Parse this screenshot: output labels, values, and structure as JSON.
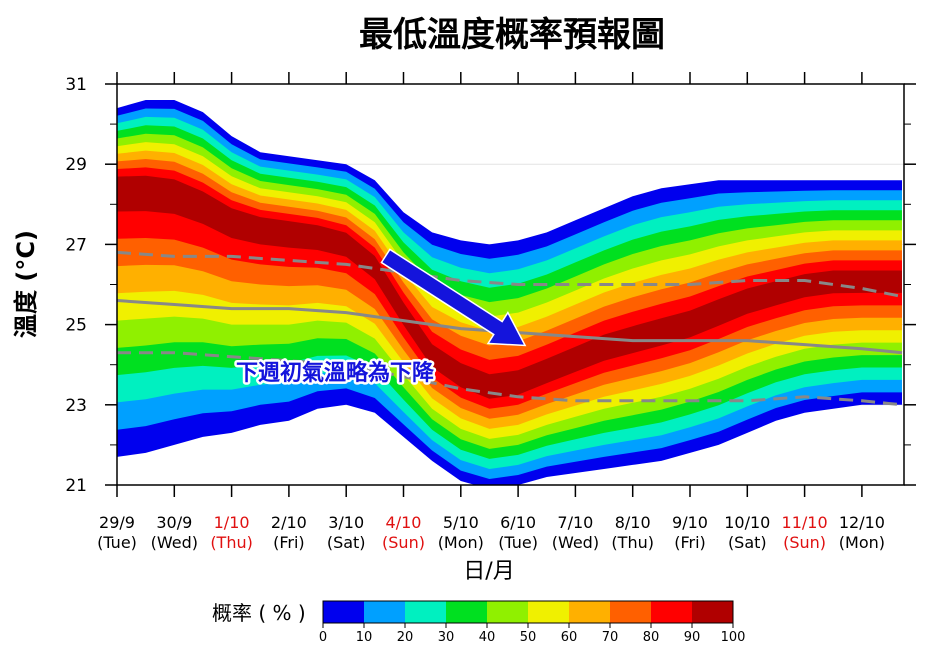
{
  "chart_data": {
    "type": "area",
    "title": "最低溫度概率預報圖",
    "ylabel": "溫度 (°C)",
    "xlabel": "日/月",
    "ylim": [
      21,
      31
    ],
    "yticks": [
      21,
      23,
      25,
      27,
      29,
      31
    ],
    "grid": true,
    "categories": [
      {
        "date": "29/9",
        "day": "(Tue)",
        "holiday": false
      },
      {
        "date": "30/9",
        "day": "(Wed)",
        "holiday": false
      },
      {
        "date": "1/10",
        "day": "(Thu)",
        "holiday": true
      },
      {
        "date": "2/10",
        "day": "(Fri)",
        "holiday": false
      },
      {
        "date": "3/10",
        "day": "(Sat)",
        "holiday": false
      },
      {
        "date": "4/10",
        "day": "(Sun)",
        "holiday": true
      },
      {
        "date": "5/10",
        "day": "(Mon)",
        "holiday": false
      },
      {
        "date": "6/10",
        "day": "(Tue)",
        "holiday": false
      },
      {
        "date": "7/10",
        "day": "(Wed)",
        "holiday": false
      },
      {
        "date": "8/10",
        "day": "(Thu)",
        "holiday": false
      },
      {
        "date": "9/10",
        "day": "(Fri)",
        "holiday": false
      },
      {
        "date": "10/10",
        "day": "(Sat)",
        "holiday": false
      },
      {
        "date": "11/10",
        "day": "(Sun)",
        "holiday": true
      },
      {
        "date": "12/10",
        "day": "(Mon)",
        "holiday": false
      }
    ],
    "probability_bands": {
      "x": [
        0,
        0.5,
        1,
        1.5,
        2,
        2.5,
        3,
        3.5,
        4,
        4.5,
        5,
        5.5,
        6,
        6.5,
        7,
        7.5,
        8,
        8.5,
        9,
        9.5,
        10,
        10.5,
        11,
        11.5,
        12,
        12.5,
        13,
        13.7
      ],
      "center": [
        28.5,
        28.5,
        28.4,
        28.1,
        27.7,
        27.5,
        27.4,
        27.3,
        27.1,
        26.5,
        25.3,
        24.2,
        23.7,
        23.4,
        23.5,
        23.8,
        24.1,
        24.4,
        24.6,
        24.8,
        25.0,
        25.3,
        25.6,
        25.8,
        26.0,
        26.1,
        26.1,
        26.1
      ],
      "lower": [
        21.7,
        21.8,
        22.0,
        22.2,
        22.3,
        22.5,
        22.6,
        22.9,
        23.0,
        22.8,
        22.2,
        21.6,
        21.1,
        20.9,
        21.0,
        21.2,
        21.3,
        21.4,
        21.5,
        21.6,
        21.8,
        22.0,
        22.3,
        22.6,
        22.8,
        22.9,
        23.0,
        23.0
      ],
      "upper": [
        30.4,
        30.6,
        30.6,
        30.3,
        29.7,
        29.3,
        29.2,
        29.1,
        29.0,
        28.6,
        27.8,
        27.3,
        27.1,
        27.0,
        27.1,
        27.3,
        27.6,
        27.9,
        28.2,
        28.4,
        28.5,
        28.6,
        28.6,
        28.6,
        28.6,
        28.6,
        28.6,
        28.6
      ],
      "levels": [
        {
          "min": 0,
          "max": 10,
          "color": "#0000ee"
        },
        {
          "min": 10,
          "max": 20,
          "color": "#00a0ff"
        },
        {
          "min": 20,
          "max": 30,
          "color": "#00f0c0"
        },
        {
          "min": 30,
          "max": 40,
          "color": "#00e020"
        },
        {
          "min": 40,
          "max": 50,
          "color": "#90f000"
        },
        {
          "min": 50,
          "max": 60,
          "color": "#f0f000"
        },
        {
          "min": 60,
          "max": 70,
          "color": "#ffb000"
        },
        {
          "min": 70,
          "max": 80,
          "color": "#ff6000"
        },
        {
          "min": 80,
          "max": 90,
          "color": "#ff0000"
        },
        {
          "min": 90,
          "max": 100,
          "color": "#b00000"
        }
      ]
    },
    "lines": [
      {
        "style": "solid",
        "color": "#888888",
        "x": [
          0,
          1,
          2,
          3,
          4,
          5,
          6,
          7,
          8,
          9,
          10,
          11,
          12,
          13,
          13.7
        ],
        "y": [
          25.6,
          25.5,
          25.4,
          25.4,
          25.3,
          25.1,
          24.9,
          24.8,
          24.7,
          24.6,
          24.6,
          24.6,
          24.5,
          24.4,
          24.3
        ]
      },
      {
        "style": "dashed",
        "color": "#888888",
        "x": [
          0,
          1,
          2,
          3,
          4,
          5,
          6,
          7,
          8,
          9,
          10,
          11,
          12,
          13,
          13.7
        ],
        "y": [
          26.8,
          26.7,
          26.7,
          26.6,
          26.5,
          26.3,
          26.1,
          26.0,
          26.0,
          26.0,
          26.0,
          26.1,
          26.1,
          25.9,
          25.7
        ]
      },
      {
        "style": "dashed",
        "color": "#888888",
        "x": [
          0,
          1,
          2,
          3,
          4,
          5,
          6,
          7,
          8,
          9,
          10,
          11,
          12,
          13,
          13.7
        ],
        "y": [
          24.3,
          24.3,
          24.2,
          24.1,
          24.0,
          23.7,
          23.4,
          23.2,
          23.1,
          23.1,
          23.1,
          23.1,
          23.2,
          23.1,
          23.0
        ]
      }
    ],
    "annotation": {
      "text": "下週初氣溫略為下降",
      "color": "#1414dc",
      "arrow_from": [
        4.7,
        26.7
      ],
      "arrow_to": [
        7.1,
        24.5
      ]
    },
    "colorbar": {
      "label": "概率 ( % )",
      "ticks": [
        0,
        10,
        20,
        30,
        40,
        50,
        60,
        70,
        80,
        90,
        100
      ]
    }
  }
}
